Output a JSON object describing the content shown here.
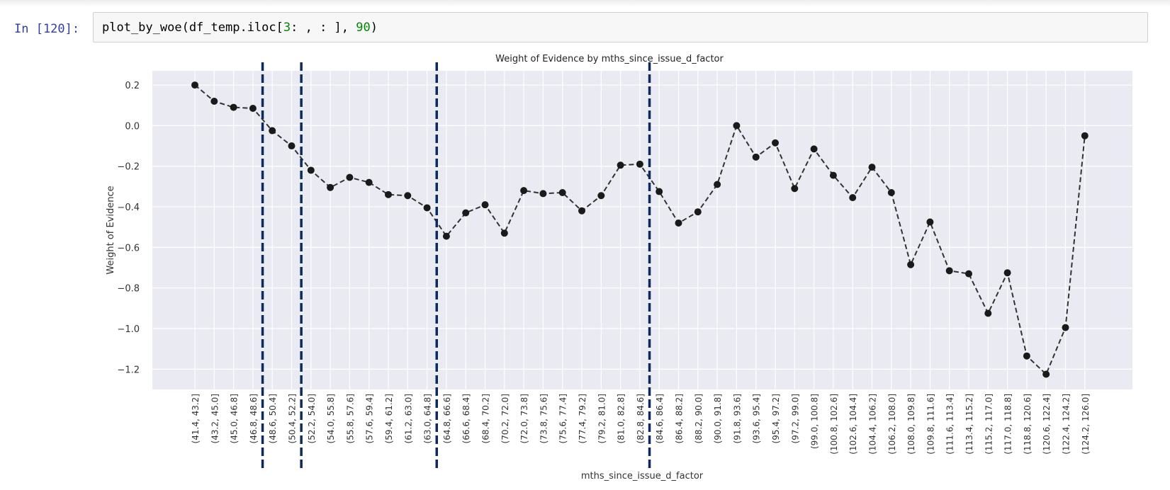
{
  "cell": {
    "prompt": "In [120]:",
    "code_prefix": "plot_by_woe(df_temp.iloc[",
    "code_num1": "3",
    "code_mid": ": , : ], ",
    "code_num2": "90",
    "code_suffix": ")"
  },
  "colors": {
    "plot_bg": "#eaeaf2",
    "grid": "#ffffff",
    "line": "#333333",
    "marker": "#1a1a1a",
    "vline": "#0d2a5c",
    "prompt": "#303f9f",
    "code_number": "#008800"
  },
  "chart_data": {
    "type": "line",
    "title": "Weight of Evidence by mths_since_issue_d_factor",
    "xlabel": "mths_since_issue_d_factor",
    "ylabel": "Weight of Evidence",
    "ylim": [
      -1.3,
      0.27
    ],
    "yticks": [
      0.2,
      0.0,
      -0.2,
      -0.4,
      -0.6,
      -0.8,
      -1.0,
      -1.2
    ],
    "ytick_labels": [
      "0.2",
      "0.0",
      "−0.2",
      "−0.4",
      "−0.6",
      "−0.8",
      "−1.0",
      "−1.2"
    ],
    "grid": true,
    "line_style": "dashed",
    "marker": "circle",
    "categories": [
      "(41.4, 43.2]",
      "(43.2, 45.0]",
      "(45.0, 46.8]",
      "(46.8, 48.6]",
      "(48.6, 50.4]",
      "(50.4, 52.2]",
      "(52.2, 54.0]",
      "(54.0, 55.8]",
      "(55.8, 57.6]",
      "(57.6, 59.4]",
      "(59.4, 61.2]",
      "(61.2, 63.0]",
      "(63.0, 64.8]",
      "(64.8, 66.6]",
      "(66.6, 68.4]",
      "(68.4, 70.2]",
      "(70.2, 72.0]",
      "(72.0, 73.8]",
      "(73.8, 75.6]",
      "(75.6, 77.4]",
      "(77.4, 79.2]",
      "(79.2, 81.0]",
      "(81.0, 82.8]",
      "(82.8, 84.6]",
      "(84.6, 86.4]",
      "(86.4, 88.2]",
      "(88.2, 90.0]",
      "(90.0, 91.8]",
      "(91.8, 93.6]",
      "(93.6, 95.4]",
      "(95.4, 97.2]",
      "(97.2, 99.0]",
      "(99.0, 100.8]",
      "(100.8, 102.6]",
      "(102.6, 104.4]",
      "(104.4, 106.2]",
      "(106.2, 108.0]",
      "(108.0, 109.8]",
      "(109.8, 111.6]",
      "(111.6, 113.4]",
      "(113.4, 115.2]",
      "(115.2, 117.0]",
      "(117.0, 118.8]",
      "(118.8, 120.6]",
      "(120.6, 122.4]",
      "(122.4, 124.2]",
      "(124.2, 126.0]"
    ],
    "values": [
      0.2,
      0.12,
      0.09,
      0.085,
      -0.025,
      -0.1,
      -0.22,
      -0.305,
      -0.255,
      -0.28,
      -0.34,
      -0.345,
      -0.405,
      -0.545,
      -0.43,
      -0.39,
      -0.53,
      -0.32,
      -0.335,
      -0.33,
      -0.42,
      -0.345,
      -0.195,
      -0.19,
      -0.325,
      -0.48,
      -0.425,
      -0.29,
      0.0,
      -0.155,
      -0.085,
      -0.31,
      -0.115,
      -0.245,
      -0.355,
      -0.205,
      -0.33,
      -0.685,
      -0.475,
      -0.715,
      -0.73,
      -0.925,
      -0.725,
      -1.135,
      -1.225,
      -0.995,
      -0.05
    ],
    "vlines_between": [
      [
        3,
        4
      ],
      [
        5,
        6
      ],
      [
        12,
        13
      ],
      [
        23,
        24
      ]
    ]
  }
}
